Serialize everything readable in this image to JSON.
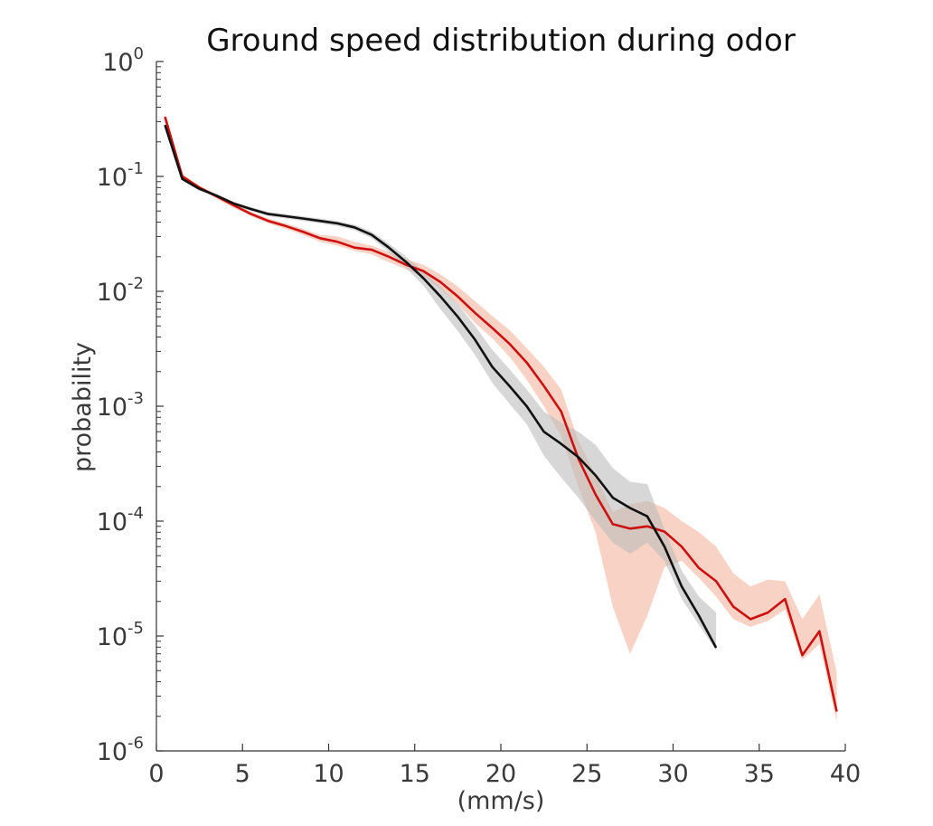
{
  "chart_data": {
    "type": "line",
    "title": "Ground speed distribution during odor",
    "xlabel": "(mm/s)",
    "ylabel": "probability",
    "x_scale": "linear",
    "y_scale": "log",
    "xlim": [
      0,
      40
    ],
    "ylim": [
      1e-06,
      1
    ],
    "x_ticks": [
      "0",
      "5",
      "10",
      "15",
      "20",
      "25",
      "30",
      "35",
      "40"
    ],
    "x_tick_values": [
      0,
      5,
      10,
      15,
      20,
      25,
      30,
      35,
      40
    ],
    "y_ticks": [
      {
        "value": 1,
        "base": "10",
        "exp": "0"
      },
      {
        "value": 0.1,
        "base": "10",
        "exp": "-1"
      },
      {
        "value": 0.01,
        "base": "10",
        "exp": "-2"
      },
      {
        "value": 0.001,
        "base": "10",
        "exp": "-3"
      },
      {
        "value": 0.0001,
        "base": "10",
        "exp": "-4"
      },
      {
        "value": 1e-05,
        "base": "10",
        "exp": "-5"
      },
      {
        "value": 1e-06,
        "base": "10",
        "exp": "-6"
      }
    ],
    "grid": false,
    "legend": "none",
    "series": [
      {
        "color": "#cc1111",
        "band_color": "#f4b49c",
        "band_opacity": 0.6,
        "x": [
          0.5,
          1.5,
          2.5,
          3.5,
          4.5,
          5.5,
          6.5,
          7.5,
          8.5,
          9.5,
          10.5,
          11.5,
          12.5,
          13.5,
          14.5,
          15.5,
          16.5,
          17.5,
          18.5,
          19.5,
          20.5,
          21.5,
          22.5,
          23.5,
          24.5,
          25.5,
          26.5,
          27.5,
          28.5,
          29.5,
          30.5,
          31.5,
          32.5,
          33.5,
          34.5,
          35.5,
          36.5,
          37.5,
          38.5,
          39.5
        ],
        "y": [
          0.33,
          0.1,
          0.08,
          0.067,
          0.056,
          0.047,
          0.041,
          0.037,
          0.033,
          0.029,
          0.027,
          0.024,
          0.023,
          0.02,
          0.017,
          0.015,
          0.012,
          0.009,
          0.0065,
          0.0048,
          0.0035,
          0.0024,
          0.0015,
          0.0009,
          0.00035,
          0.00017,
          9.4e-05,
          8.6e-05,
          9e-05,
          8.1e-05,
          6e-05,
          3.9e-05,
          3e-05,
          1.8e-05,
          1.4e-05,
          1.6e-05,
          2.1e-05,
          6.8e-06,
          1.1e-05,
          2.2e-06
        ],
        "y_low": [
          0.31,
          0.095,
          0.077,
          0.064,
          0.053,
          0.045,
          0.039,
          0.035,
          0.031,
          0.027,
          0.025,
          0.0225,
          0.021,
          0.018,
          0.0155,
          0.0135,
          0.0105,
          0.0077,
          0.0053,
          0.0039,
          0.0027,
          0.0017,
          0.001,
          0.00055,
          0.0002,
          8e-05,
          1.8e-05,
          7e-06,
          1.5e-05,
          4e-05,
          4.5e-05,
          3.2e-05,
          2.2e-05,
          1.4e-05,
          1.2e-05,
          1.35e-05,
          1.7e-05,
          6.2e-06,
          8.5e-06,
          1.8e-06
        ],
        "y_high": [
          0.35,
          0.105,
          0.083,
          0.07,
          0.059,
          0.049,
          0.043,
          0.039,
          0.035,
          0.031,
          0.03,
          0.027,
          0.025,
          0.022,
          0.019,
          0.017,
          0.014,
          0.011,
          0.0082,
          0.0061,
          0.0046,
          0.0032,
          0.0022,
          0.0014,
          0.0005,
          0.00025,
          0.00012,
          0.00014,
          0.00015,
          0.00013,
          0.0001,
          8e-05,
          6e-05,
          3.5e-05,
          2.7e-05,
          3.1e-05,
          3e-05,
          1.4e-05,
          2.3e-05,
          4.8e-06
        ]
      },
      {
        "color": "#111111",
        "band_color": "#bdbdbd",
        "band_opacity": 0.6,
        "x": [
          0.5,
          1.5,
          2.5,
          3.5,
          4.5,
          5.5,
          6.5,
          7.5,
          8.5,
          9.5,
          10.5,
          11.5,
          12.5,
          13.5,
          14.5,
          15.5,
          16.5,
          17.5,
          18.5,
          19.5,
          20.5,
          21.5,
          22.5,
          23.5,
          24.5,
          25.5,
          26.5,
          27.5,
          28.5,
          29.5,
          30.5,
          31.5,
          32.5
        ],
        "y": [
          0.28,
          0.095,
          0.078,
          0.068,
          0.058,
          0.052,
          0.047,
          0.045,
          0.043,
          0.041,
          0.039,
          0.036,
          0.031,
          0.024,
          0.018,
          0.013,
          0.009,
          0.006,
          0.0038,
          0.0022,
          0.0015,
          0.001,
          0.0006,
          0.00047,
          0.00036,
          0.00025,
          0.00016,
          0.00013,
          0.00011,
          6e-05,
          2.7e-05,
          1.5e-05,
          7.9e-06
        ],
        "y_low": [
          0.27,
          0.092,
          0.075,
          0.066,
          0.056,
          0.05,
          0.045,
          0.043,
          0.041,
          0.039,
          0.037,
          0.034,
          0.029,
          0.022,
          0.016,
          0.0112,
          0.007,
          0.0045,
          0.0028,
          0.0016,
          0.00105,
          0.0007,
          0.00037,
          0.00024,
          0.00016,
          0.0001,
          6.5e-05,
          5.2e-05,
          6.5e-05,
          4.5e-05,
          2.1e-05,
          1.25e-05,
          7.5e-06
        ],
        "y_high": [
          0.29,
          0.098,
          0.081,
          0.07,
          0.06,
          0.054,
          0.049,
          0.047,
          0.045,
          0.043,
          0.041,
          0.038,
          0.033,
          0.026,
          0.02,
          0.0148,
          0.011,
          0.0077,
          0.005,
          0.0031,
          0.0021,
          0.0014,
          0.0009,
          0.00072,
          0.0006,
          0.00046,
          0.00029,
          0.00022,
          0.00021,
          8.5e-05,
          3.7e-05,
          2.2e-05,
          1.6e-05
        ]
      }
    ]
  }
}
